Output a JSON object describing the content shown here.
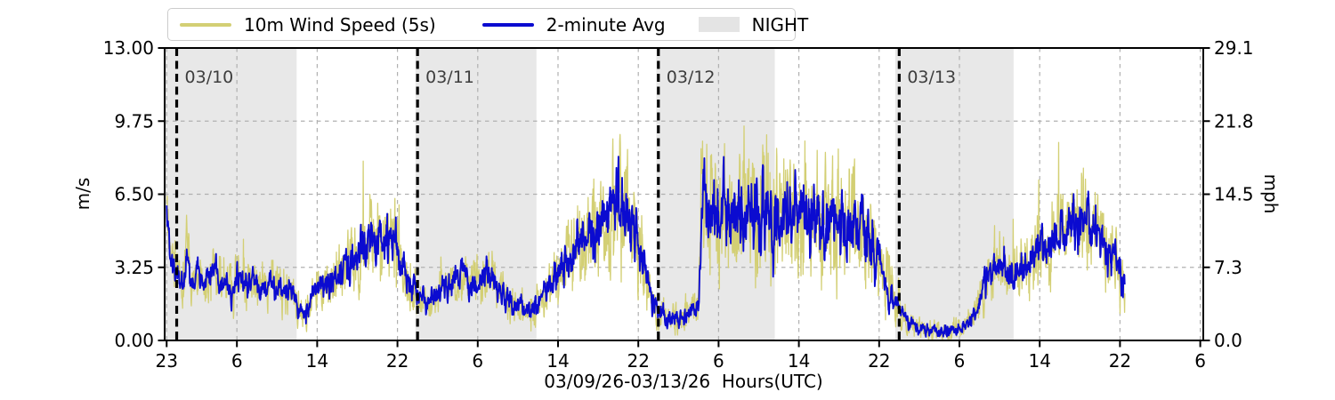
{
  "chart_data": {
    "type": "line",
    "title": "",
    "xlabel": "03/09/26-03/13/26  Hours(UTC)",
    "x_axis": {
      "range_hours": [
        -0.2,
        103.3
      ],
      "tick_hours": [
        0,
        7,
        15,
        23,
        31,
        39,
        47,
        55,
        63,
        71,
        79,
        87,
        95,
        103
      ],
      "tick_labels": [
        "23",
        "6",
        "14",
        "22",
        "6",
        "14",
        "22",
        "6",
        "14",
        "22",
        "6",
        "14",
        "22",
        "6"
      ]
    },
    "y_left": {
      "label": "m/s",
      "range": [
        0,
        13
      ],
      "tick_values": [
        0,
        3.25,
        6.5,
        9.75,
        13
      ],
      "tick_labels": [
        "0.00",
        "3.25",
        "6.50",
        "9.75",
        "13.00"
      ]
    },
    "y_right": {
      "label": "mph",
      "range": [
        0,
        29.1
      ],
      "tick_values": [
        0,
        3.25,
        6.5,
        9.75,
        13
      ],
      "tick_labels": [
        "0.0",
        "7.3",
        "14.5",
        "21.8",
        "29.1"
      ]
    },
    "grid": {
      "on": true,
      "color": "#b0b0b0"
    },
    "legend_position": "top-left-outside",
    "night_label": "NIGHT",
    "night_band_color": "#e8e8e8",
    "day_label_color": "#3d3d3d",
    "day_line_color": "#000000",
    "night_bands_hours": [
      [
        -0.2,
        12.95
      ],
      [
        24.8,
        36.85
      ],
      [
        48.8,
        60.6
      ],
      [
        72.6,
        84.4
      ]
    ],
    "day_markers": [
      {
        "hour": 1,
        "label": "03/10"
      },
      {
        "hour": 25,
        "label": "03/11"
      },
      {
        "hour": 49,
        "label": "03/12"
      },
      {
        "hour": 73,
        "label": "03/13"
      }
    ],
    "data_start_hour": 0,
    "data_end_hour": 95.5,
    "series": [
      {
        "name": "10m Wind Speed (5s)",
        "color": "#d3cf74",
        "role": "raw-5s"
      },
      {
        "name": "2-minute Avg",
        "color": "#0b0bd0",
        "role": "2min-avg"
      }
    ],
    "avg_keypoints": {
      "comment_units": "hours since 03/09/26 23:00 UTC ; values in m/s ; gust_spread = typical gust half-width",
      "hours": [
        0,
        0.4,
        1,
        1.6,
        2,
        2.4,
        3,
        3.6,
        4,
        5,
        5.5,
        6,
        6.6,
        7,
        8,
        8.6,
        9,
        10,
        10.5,
        11,
        12,
        12.5,
        13,
        13.6,
        14.2,
        15,
        16,
        17,
        18,
        19,
        20,
        21,
        21.6,
        22.3,
        23,
        23.6,
        24.3,
        25,
        26,
        27,
        28,
        29,
        30,
        31,
        32,
        32.4,
        33,
        34,
        35,
        36,
        36.6,
        37.3,
        38,
        39,
        40,
        41,
        42,
        43,
        44,
        44.6,
        45.2,
        46,
        46.6,
        47,
        47.5,
        48,
        48.6,
        49,
        50,
        51,
        52,
        52.6,
        53,
        53.3,
        54,
        55,
        56,
        57,
        58,
        59,
        60,
        61,
        62,
        63,
        64,
        65,
        66,
        67,
        68,
        68.6,
        69.3,
        70,
        70.6,
        71,
        72,
        72.6,
        73,
        74,
        75,
        76,
        77,
        78,
        79,
        80,
        80.6,
        81.3,
        82,
        82.6,
        83.3,
        84,
        85,
        86,
        87,
        88,
        89,
        90,
        91,
        92,
        93,
        94,
        94.6,
        95.2,
        95.5
      ],
      "values": [
        6.2,
        3.4,
        3.2,
        2.2,
        4.0,
        2.6,
        3.1,
        2.3,
        2.8,
        3.1,
        2.4,
        2.7,
        2.2,
        2.9,
        2.4,
        2.9,
        2.5,
        2.3,
        2.7,
        2.4,
        2.0,
        2.3,
        1.6,
        1.1,
        1.5,
        2.1,
        2.5,
        2.8,
        3.3,
        3.9,
        4.2,
        4.5,
        4.2,
        4.7,
        3.9,
        3.0,
        2.3,
        2.0,
        1.9,
        2.1,
        2.4,
        2.6,
        2.7,
        2.5,
        3.1,
        2.6,
        2.2,
        1.8,
        1.6,
        1.2,
        1.4,
        1.8,
        2.5,
        2.9,
        3.6,
        4.2,
        4.6,
        5.1,
        5.6,
        6.0,
        6.3,
        5.4,
        5.0,
        4.7,
        3.4,
        2.3,
        1.6,
        1.3,
        1.0,
        0.8,
        1.1,
        1.4,
        1.6,
        6.6,
        5.8,
        6.0,
        5.7,
        6.0,
        5.6,
        5.9,
        5.6,
        5.8,
        5.4,
        5.6,
        5.2,
        5.5,
        5.1,
        5.3,
        4.9,
        5.2,
        5.0,
        4.4,
        3.9,
        3.4,
        2.4,
        1.8,
        1.3,
        0.7,
        0.5,
        0.4,
        0.5,
        0.4,
        0.6,
        0.8,
        1.2,
        2.2,
        3.0,
        3.5,
        3.4,
        3.1,
        2.9,
        3.4,
        4.0,
        4.4,
        4.8,
        5.1,
        5.3,
        5.0,
        4.6,
        4.0,
        3.5,
        2.8,
        2.4
      ],
      "gust_spread": [
        1.0,
        0.9,
        0.9,
        0.8,
        1.1,
        0.9,
        0.9,
        0.8,
        0.9,
        0.9,
        0.8,
        0.9,
        0.8,
        0.9,
        0.9,
        0.9,
        0.8,
        0.8,
        0.8,
        0.8,
        0.8,
        0.7,
        0.7,
        0.6,
        0.7,
        0.8,
        0.9,
        1.0,
        1.2,
        1.4,
        1.5,
        1.6,
        1.5,
        1.9,
        1.5,
        1.2,
        0.9,
        0.8,
        0.8,
        0.8,
        0.9,
        0.9,
        0.9,
        0.9,
        1.2,
        1.0,
        0.9,
        0.8,
        0.7,
        0.6,
        0.7,
        0.8,
        1.0,
        1.2,
        1.5,
        1.7,
        1.8,
        1.9,
        2.1,
        2.2,
        2.3,
        2.0,
        1.9,
        1.8,
        1.4,
        1.0,
        0.8,
        0.7,
        0.6,
        0.6,
        0.6,
        0.7,
        0.8,
        2.4,
        2.3,
        2.4,
        2.3,
        2.4,
        2.3,
        2.4,
        2.6,
        2.4,
        2.3,
        2.3,
        2.2,
        2.3,
        2.2,
        2.2,
        2.1,
        2.2,
        2.1,
        1.9,
        1.7,
        1.5,
        1.1,
        0.9,
        0.7,
        0.5,
        0.4,
        0.4,
        0.4,
        0.4,
        0.4,
        0.5,
        0.6,
        0.9,
        1.1,
        1.2,
        1.2,
        1.1,
        1.1,
        1.2,
        1.4,
        1.5,
        1.6,
        1.7,
        1.8,
        1.7,
        1.6,
        1.5,
        1.3,
        1.1,
        1.0
      ]
    }
  }
}
